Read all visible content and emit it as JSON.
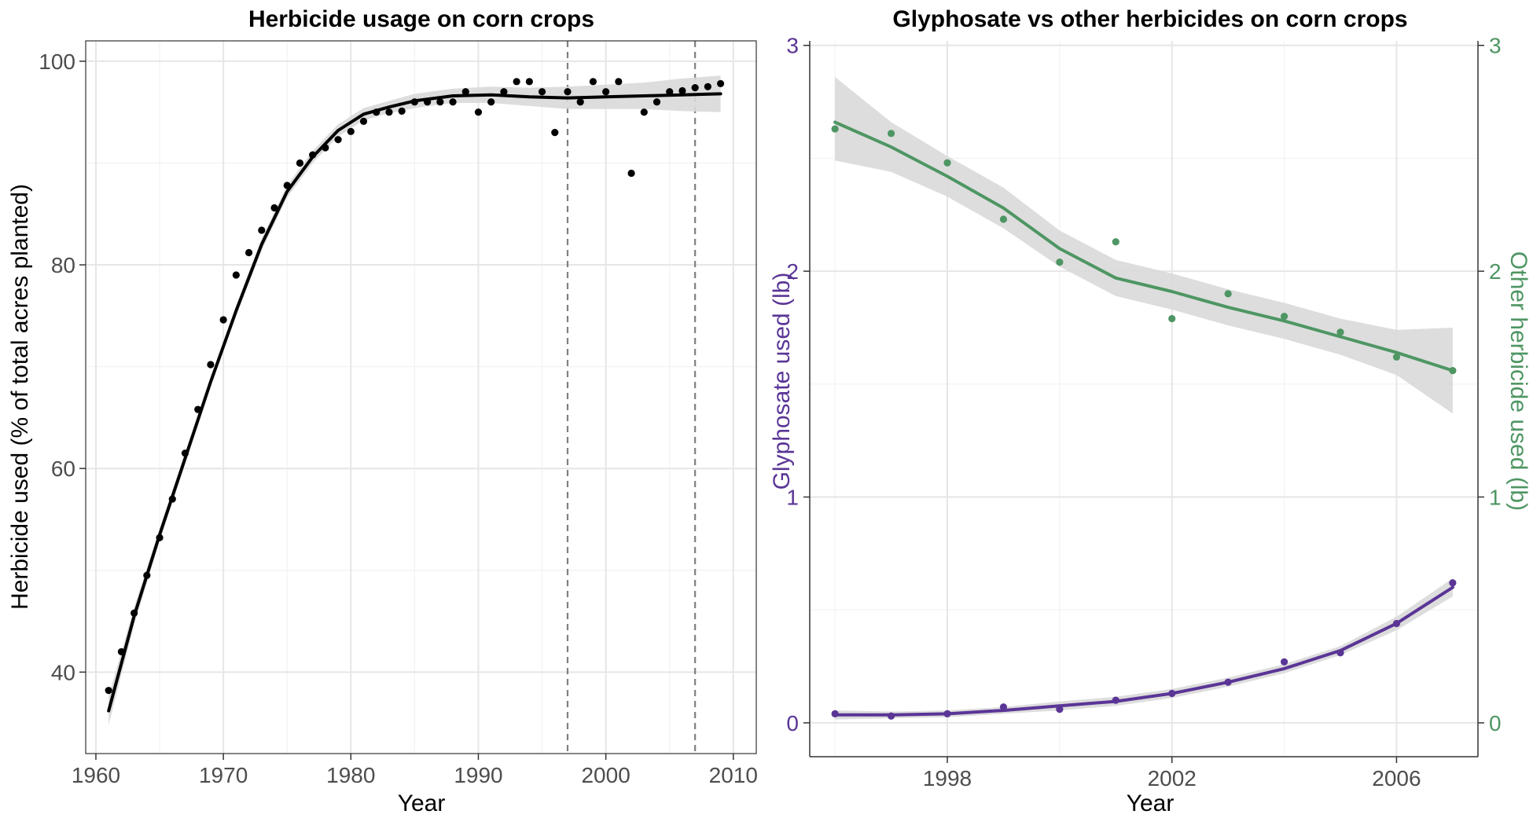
{
  "chart_data": [
    {
      "type": "scatter",
      "title": "Herbicide usage on corn crops",
      "xlabel": "Year",
      "ylabel": "Herbicide used (% of total acres planted)",
      "xlim": [
        1959.2,
        2011.8
      ],
      "ylim": [
        32,
        102
      ],
      "xticks": [
        1960,
        1970,
        1980,
        1990,
        2000,
        2010
      ],
      "yticks": [
        40,
        60,
        80,
        100
      ],
      "grid": true,
      "smooth": "loess with confidence band",
      "vlines": [
        1997,
        2007
      ],
      "colors": {
        "points": "#000000",
        "smooth": "#000000",
        "band": "#d9d9d9",
        "vline": "#808080"
      },
      "series": [
        {
          "x": [
            1961,
            1962,
            1963,
            1964,
            1965,
            1966,
            1967,
            1968,
            1969,
            1970,
            1971,
            1972,
            1973,
            1974,
            1975,
            1976,
            1977,
            1978,
            1979,
            1980,
            1981,
            1982,
            1983,
            1984,
            1985,
            1986,
            1987,
            1988,
            1989,
            1990,
            1991,
            1992,
            1993,
            1994,
            1995,
            1996,
            1997,
            1998,
            1999,
            2000,
            2001,
            2002,
            2003,
            2004,
            2005,
            2006,
            2007,
            2008,
            2009
          ],
          "y": [
            38.2,
            42.0,
            45.8,
            49.5,
            53.2,
            57.0,
            61.5,
            65.8,
            70.2,
            74.6,
            79.0,
            81.2,
            83.4,
            85.6,
            87.8,
            90.0,
            90.8,
            91.5,
            92.3,
            93.1,
            94.1,
            95.0,
            95.0,
            95.1,
            96.0,
            96.0,
            96.0,
            96.0,
            97.0,
            95.0,
            96.0,
            97.0,
            98.0,
            98.0,
            97.0,
            93.0,
            97.0,
            96.0,
            98.0,
            97.0,
            98.0,
            89.0,
            95.0,
            96.0,
            97.0,
            97.1,
            97.4,
            97.5,
            97.8
          ]
        }
      ],
      "smooth_line": {
        "x": [
          1961,
          1963,
          1965,
          1967,
          1969,
          1971,
          1973,
          1975,
          1977,
          1979,
          1981,
          1983,
          1985,
          1988,
          1991,
          1994,
          1997,
          2000,
          2003,
          2006,
          2009
        ],
        "y": [
          36.2,
          45.5,
          53.5,
          61.0,
          68.5,
          75.5,
          82.0,
          87.2,
          90.6,
          93.2,
          94.8,
          95.5,
          96.1,
          96.6,
          96.7,
          96.5,
          96.4,
          96.5,
          96.6,
          96.7,
          96.8
        ],
        "lower": [
          34.8,
          44.6,
          52.9,
          60.4,
          68.0,
          75.0,
          81.4,
          86.6,
          90.0,
          92.6,
          94.2,
          94.9,
          95.4,
          95.9,
          95.9,
          95.6,
          95.3,
          95.3,
          95.3,
          95.1,
          95.0
        ],
        "upper": [
          37.6,
          46.4,
          54.1,
          61.6,
          69.0,
          76.0,
          82.6,
          87.8,
          91.2,
          93.8,
          95.4,
          96.1,
          96.8,
          97.3,
          97.5,
          97.4,
          97.5,
          97.7,
          97.9,
          98.3,
          98.6
        ]
      }
    },
    {
      "type": "scatter",
      "title": "Glyphosate vs other herbicides on corn crops",
      "xlabel": "Year",
      "ylabel": "Glyphosate used (lb)",
      "ylabel_right": "Other herbicide used (lb)",
      "xlim": [
        1995.55,
        2007.45
      ],
      "ylim": [
        -0.15,
        3.02
      ],
      "xticks": [
        1998,
        2002,
        2006
      ],
      "yticks": [
        0,
        1,
        2,
        3
      ],
      "grid": true,
      "smooth": "loess with confidence band",
      "colors": {
        "glyphosate": "#5a3596",
        "other": "#4e9663",
        "band": "#d9d9d9"
      },
      "series": [
        {
          "key": "glyphosate",
          "x": [
            1996,
            1997,
            1998,
            1999,
            2000,
            2001,
            2002,
            2003,
            2004,
            2005,
            2006,
            2007
          ],
          "y": [
            0.04,
            0.03,
            0.04,
            0.07,
            0.06,
            0.1,
            0.13,
            0.18,
            0.27,
            0.31,
            0.44,
            0.62
          ],
          "smooth_y": [
            0.035,
            0.035,
            0.04,
            0.055,
            0.075,
            0.095,
            0.13,
            0.18,
            0.24,
            0.32,
            0.44,
            0.6
          ],
          "lower": [
            0.015,
            0.02,
            0.025,
            0.04,
            0.055,
            0.075,
            0.11,
            0.16,
            0.22,
            0.3,
            0.41,
            0.56
          ],
          "upper": [
            0.055,
            0.05,
            0.055,
            0.07,
            0.095,
            0.115,
            0.15,
            0.2,
            0.26,
            0.34,
            0.47,
            0.64
          ]
        },
        {
          "key": "other",
          "x": [
            1996,
            1997,
            1998,
            1999,
            2000,
            2001,
            2002,
            2003,
            2004,
            2005,
            2006,
            2007
          ],
          "y": [
            2.63,
            2.61,
            2.48,
            2.23,
            2.04,
            2.13,
            1.79,
            1.9,
            1.8,
            1.73,
            1.62,
            1.56
          ],
          "smooth_y": [
            2.66,
            2.55,
            2.42,
            2.28,
            2.1,
            1.97,
            1.91,
            1.84,
            1.78,
            1.71,
            1.64,
            1.56
          ],
          "lower": [
            2.49,
            2.44,
            2.33,
            2.19,
            2.02,
            1.89,
            1.83,
            1.76,
            1.7,
            1.63,
            1.54,
            1.37
          ],
          "upper": [
            2.86,
            2.66,
            2.51,
            2.37,
            2.18,
            2.05,
            1.99,
            1.92,
            1.86,
            1.79,
            1.74,
            1.75
          ]
        }
      ]
    }
  ]
}
